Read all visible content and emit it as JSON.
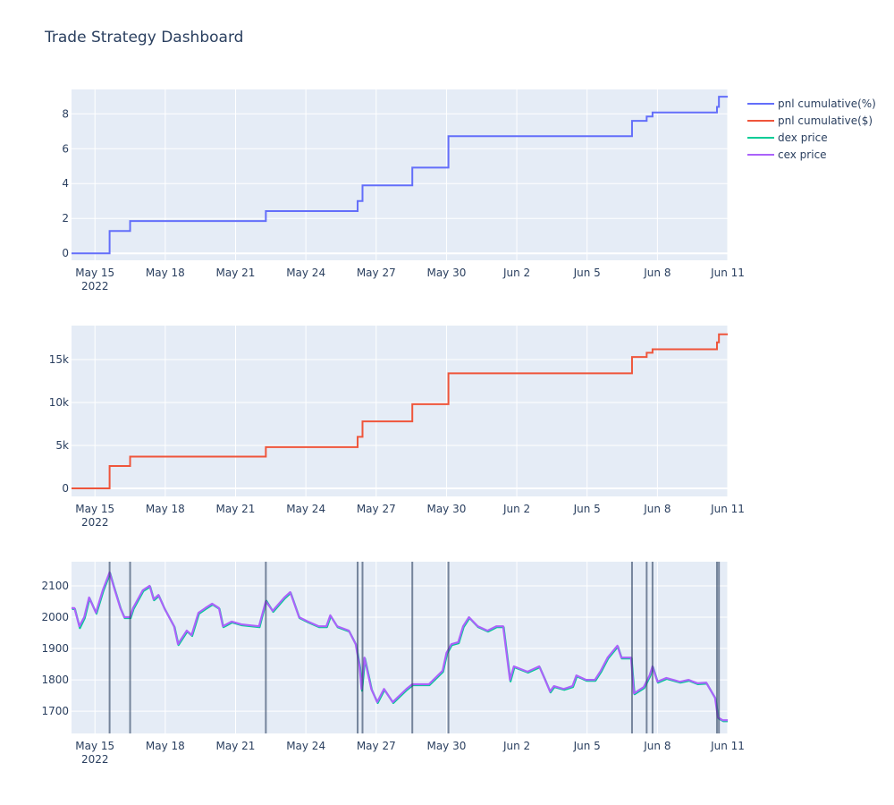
{
  "title": "Trade Strategy Dashboard",
  "legend": [
    {
      "name": "pnl cumulative(%)",
      "color": "#636efa"
    },
    {
      "name": "pnl cumulative($)",
      "color": "#EF553B"
    },
    {
      "name": "dex price",
      "color": "#00cc96"
    },
    {
      "name": "cex price",
      "color": "#ab63fa"
    }
  ],
  "colors": {
    "plot_bg": "#e5ecf6",
    "grid": "#ffffff",
    "trade_line": "#2a3f5f"
  },
  "chart_data": [
    {
      "type": "line",
      "line_shape": "step",
      "xlim": [
        "2022-05-14 00:00",
        "2022-06-11 00:00"
      ],
      "ylim": [
        -0.4,
        9.4
      ],
      "x_ticks": [
        {
          "date": "2022-05-15 00:00",
          "label": "May 15",
          "sub": "2022"
        },
        {
          "date": "2022-05-18 00:00",
          "label": "May 18"
        },
        {
          "date": "2022-05-21 00:00",
          "label": "May 21"
        },
        {
          "date": "2022-05-24 00:00",
          "label": "May 24"
        },
        {
          "date": "2022-05-27 00:00",
          "label": "May 27"
        },
        {
          "date": "2022-05-30 00:00",
          "label": "May 30"
        },
        {
          "date": "2022-06-02 00:00",
          "label": "Jun 2"
        },
        {
          "date": "2022-06-05 00:00",
          "label": "Jun 5"
        },
        {
          "date": "2022-06-08 00:00",
          "label": "Jun 8"
        },
        {
          "date": "2022-06-11 00:00",
          "label": "Jun 11"
        }
      ],
      "y_ticks": [
        {
          "v": 0,
          "label": "0"
        },
        {
          "v": 2,
          "label": "2"
        },
        {
          "v": 4,
          "label": "4"
        },
        {
          "v": 6,
          "label": "6"
        },
        {
          "v": 8,
          "label": "8"
        }
      ],
      "series": [
        {
          "name": "pnl cumulative(%)",
          "x": [
            "2022-05-14 00:00",
            "2022-05-15 15:00",
            "2022-05-16 12:00",
            "2022-05-22 07:00",
            "2022-05-26 05:00",
            "2022-05-26 10:00",
            "2022-05-28 13:00",
            "2022-05-30 02:00",
            "2022-06-06 22:00",
            "2022-06-07 13:00",
            "2022-06-07 19:00",
            "2022-06-10 13:00",
            "2022-06-10 15:00",
            "2022-06-11 00:00"
          ],
          "y": [
            0,
            1.28,
            1.85,
            2.42,
            3.0,
            3.9,
            4.92,
            6.72,
            7.6,
            7.85,
            8.08,
            8.4,
            8.98,
            8.98
          ]
        }
      ]
    },
    {
      "type": "line",
      "line_shape": "step",
      "xlim": [
        "2022-05-14 00:00",
        "2022-06-11 00:00"
      ],
      "ylim": [
        -940,
        18960
      ],
      "x_ticks": [
        {
          "date": "2022-05-15 00:00",
          "label": "May 15",
          "sub": "2022"
        },
        {
          "date": "2022-05-18 00:00",
          "label": "May 18"
        },
        {
          "date": "2022-05-21 00:00",
          "label": "May 21"
        },
        {
          "date": "2022-05-24 00:00",
          "label": "May 24"
        },
        {
          "date": "2022-05-27 00:00",
          "label": "May 27"
        },
        {
          "date": "2022-05-30 00:00",
          "label": "May 30"
        },
        {
          "date": "2022-06-02 00:00",
          "label": "Jun 2"
        },
        {
          "date": "2022-06-05 00:00",
          "label": "Jun 5"
        },
        {
          "date": "2022-06-08 00:00",
          "label": "Jun 8"
        },
        {
          "date": "2022-06-11 00:00",
          "label": "Jun 11"
        }
      ],
      "y_ticks": [
        {
          "v": 0,
          "label": "0"
        },
        {
          "v": 5000,
          "label": "5k"
        },
        {
          "v": 10000,
          "label": "10k"
        },
        {
          "v": 15000,
          "label": "15k"
        }
      ],
      "series": [
        {
          "name": "pnl cumulative($)",
          "x": [
            "2022-05-14 00:00",
            "2022-05-15 15:00",
            "2022-05-16 12:00",
            "2022-05-22 07:00",
            "2022-05-26 05:00",
            "2022-05-26 10:00",
            "2022-05-28 13:00",
            "2022-05-30 02:00",
            "2022-06-06 22:00",
            "2022-06-07 13:00",
            "2022-06-07 19:00",
            "2022-06-10 13:00",
            "2022-06-10 15:00",
            "2022-06-11 00:00"
          ],
          "y": [
            0,
            2600,
            3700,
            4800,
            6000,
            7800,
            9800,
            13400,
            15300,
            15800,
            16200,
            17000,
            17950,
            17950
          ]
        }
      ]
    },
    {
      "type": "line",
      "xlim": [
        "2022-05-14 00:00",
        "2022-06-11 00:00"
      ],
      "ylim": [
        1629,
        2177
      ],
      "x_ticks": [
        {
          "date": "2022-05-15 00:00",
          "label": "May 15",
          "sub": "2022"
        },
        {
          "date": "2022-05-18 00:00",
          "label": "May 18"
        },
        {
          "date": "2022-05-21 00:00",
          "label": "May 21"
        },
        {
          "date": "2022-05-24 00:00",
          "label": "May 24"
        },
        {
          "date": "2022-05-27 00:00",
          "label": "May 27"
        },
        {
          "date": "2022-05-30 00:00",
          "label": "May 30"
        },
        {
          "date": "2022-06-02 00:00",
          "label": "Jun 2"
        },
        {
          "date": "2022-06-05 00:00",
          "label": "Jun 5"
        },
        {
          "date": "2022-06-08 00:00",
          "label": "Jun 8"
        },
        {
          "date": "2022-06-11 00:00",
          "label": "Jun 11"
        }
      ],
      "y_ticks": [
        {
          "v": 1700,
          "label": "1700"
        },
        {
          "v": 1800,
          "label": "1800"
        },
        {
          "v": 1900,
          "label": "1900"
        },
        {
          "v": 2000,
          "label": "2000"
        },
        {
          "v": 2100,
          "label": "2100"
        }
      ],
      "trade_markers": [
        "2022-05-15 15:00",
        "2022-05-16 12:00",
        "2022-05-22 07:00",
        "2022-05-26 05:00",
        "2022-05-26 10:00",
        "2022-05-28 13:00",
        "2022-05-30 02:00",
        "2022-06-06 22:00",
        "2022-06-07 13:00",
        "2022-06-07 19:00",
        "2022-06-10 13:00",
        "2022-06-10 15:00"
      ],
      "x": [
        "2022-05-14 00:00",
        "2022-05-14 03:00",
        "2022-05-14 08:00",
        "2022-05-14 13:00",
        "2022-05-14 18:00",
        "2022-05-15 01:00",
        "2022-05-15 08:00",
        "2022-05-15 15:00",
        "2022-05-15 19:00",
        "2022-05-16 02:00",
        "2022-05-16 06:00",
        "2022-05-16 12:00",
        "2022-05-16 15:00",
        "2022-05-17 01:00",
        "2022-05-17 08:00",
        "2022-05-17 12:00",
        "2022-05-17 17:00",
        "2022-05-17 23:00",
        "2022-05-18 09:00",
        "2022-05-18 13:00",
        "2022-05-18 22:00",
        "2022-05-19 03:00",
        "2022-05-19 10:00",
        "2022-05-19 17:00",
        "2022-05-20 00:00",
        "2022-05-20 07:00",
        "2022-05-20 11:00",
        "2022-05-20 20:00",
        "2022-05-21 06:00",
        "2022-05-22 00:00",
        "2022-05-22 07:00",
        "2022-05-22 14:00",
        "2022-05-23 02:00",
        "2022-05-23 08:00",
        "2022-05-23 17:00",
        "2022-05-24 02:00",
        "2022-05-24 13:00",
        "2022-05-24 21:00",
        "2022-05-25 01:00",
        "2022-05-25 08:00",
        "2022-05-25 20:00",
        "2022-05-26 03:00",
        "2022-05-26 07:00",
        "2022-05-26 09:00",
        "2022-05-26 12:00",
        "2022-05-26 19:00",
        "2022-05-27 01:00",
        "2022-05-27 08:00",
        "2022-05-27 17:00",
        "2022-05-28 07:00",
        "2022-05-28 13:00",
        "2022-05-29 06:00",
        "2022-05-29 20:00",
        "2022-05-30 00:00",
        "2022-05-30 05:00",
        "2022-05-30 12:00",
        "2022-05-30 17:00",
        "2022-05-30 23:00",
        "2022-05-31 08:00",
        "2022-05-31 18:00",
        "2022-06-01 03:00",
        "2022-06-01 10:00",
        "2022-06-01 17:00",
        "2022-06-01 21:00",
        "2022-06-02 11:00",
        "2022-06-02 23:00",
        "2022-06-03 05:00",
        "2022-06-03 10:00",
        "2022-06-03 14:00",
        "2022-06-04 00:00",
        "2022-06-04 09:00",
        "2022-06-04 13:00",
        "2022-06-04 23:00",
        "2022-06-05 08:00",
        "2022-06-05 14:00",
        "2022-06-05 21:00",
        "2022-06-06 07:00",
        "2022-06-06 11:00",
        "2022-06-06 21:00",
        "2022-06-07 00:00",
        "2022-06-07 10:00",
        "2022-06-07 16:00",
        "2022-06-07 19:00",
        "2022-06-08 00:00",
        "2022-06-08 09:00",
        "2022-06-08 23:00",
        "2022-06-09 08:00",
        "2022-06-09 17:00",
        "2022-06-10 02:00",
        "2022-06-10 11:00",
        "2022-06-10 14:00",
        "2022-06-10 19:00",
        "2022-06-11 00:00"
      ],
      "series": [
        {
          "name": "dex price",
          "y": [
            2029,
            2029,
            1968,
            2000,
            2063,
            2014,
            2086,
            2143,
            2100,
            2029,
            2000,
            2000,
            2029,
            2086,
            2100,
            2057,
            2071,
            2029,
            1971,
            1914,
            1957,
            1943,
            2014,
            2029,
            2043,
            2029,
            1971,
            1986,
            1977,
            1971,
            2055,
            2020,
            2063,
            2080,
            2000,
            1986,
            1971,
            1971,
            2006,
            1971,
            1957,
            1914,
            1843,
            1768,
            1871,
            1771,
            1729,
            1771,
            1729,
            1771,
            1786,
            1786,
            1829,
            1886,
            1914,
            1920,
            1971,
            2000,
            1971,
            1957,
            1971,
            1971,
            1798,
            1843,
            1826,
            1843,
            1800,
            1763,
            1780,
            1771,
            1780,
            1814,
            1800,
            1800,
            1829,
            1871,
            1909,
            1871,
            1871,
            1757,
            1777,
            1814,
            1843,
            1794,
            1806,
            1794,
            1800,
            1789,
            1791,
            1743,
            1680,
            1671,
            1671
          ]
        },
        {
          "name": "cex price",
          "y": [
            2029,
            2029,
            1971,
            2000,
            2063,
            2014,
            2086,
            2143,
            2100,
            2029,
            2000,
            2000,
            2029,
            2086,
            2100,
            2057,
            2071,
            2029,
            1971,
            1914,
            1957,
            1943,
            2014,
            2029,
            2043,
            2029,
            1971,
            1986,
            1977,
            1971,
            2051,
            2020,
            2063,
            2080,
            2000,
            1986,
            1971,
            1971,
            2006,
            1971,
            1957,
            1914,
            1843,
            1771,
            1871,
            1771,
            1729,
            1771,
            1729,
            1771,
            1786,
            1786,
            1829,
            1886,
            1914,
            1920,
            1971,
            2000,
            1971,
            1957,
            1971,
            1971,
            1800,
            1843,
            1826,
            1843,
            1800,
            1763,
            1780,
            1771,
            1780,
            1814,
            1800,
            1800,
            1829,
            1871,
            1909,
            1871,
            1871,
            1757,
            1777,
            1814,
            1843,
            1794,
            1806,
            1794,
            1800,
            1789,
            1791,
            1743,
            1680,
            1671,
            1671
          ]
        }
      ]
    }
  ]
}
